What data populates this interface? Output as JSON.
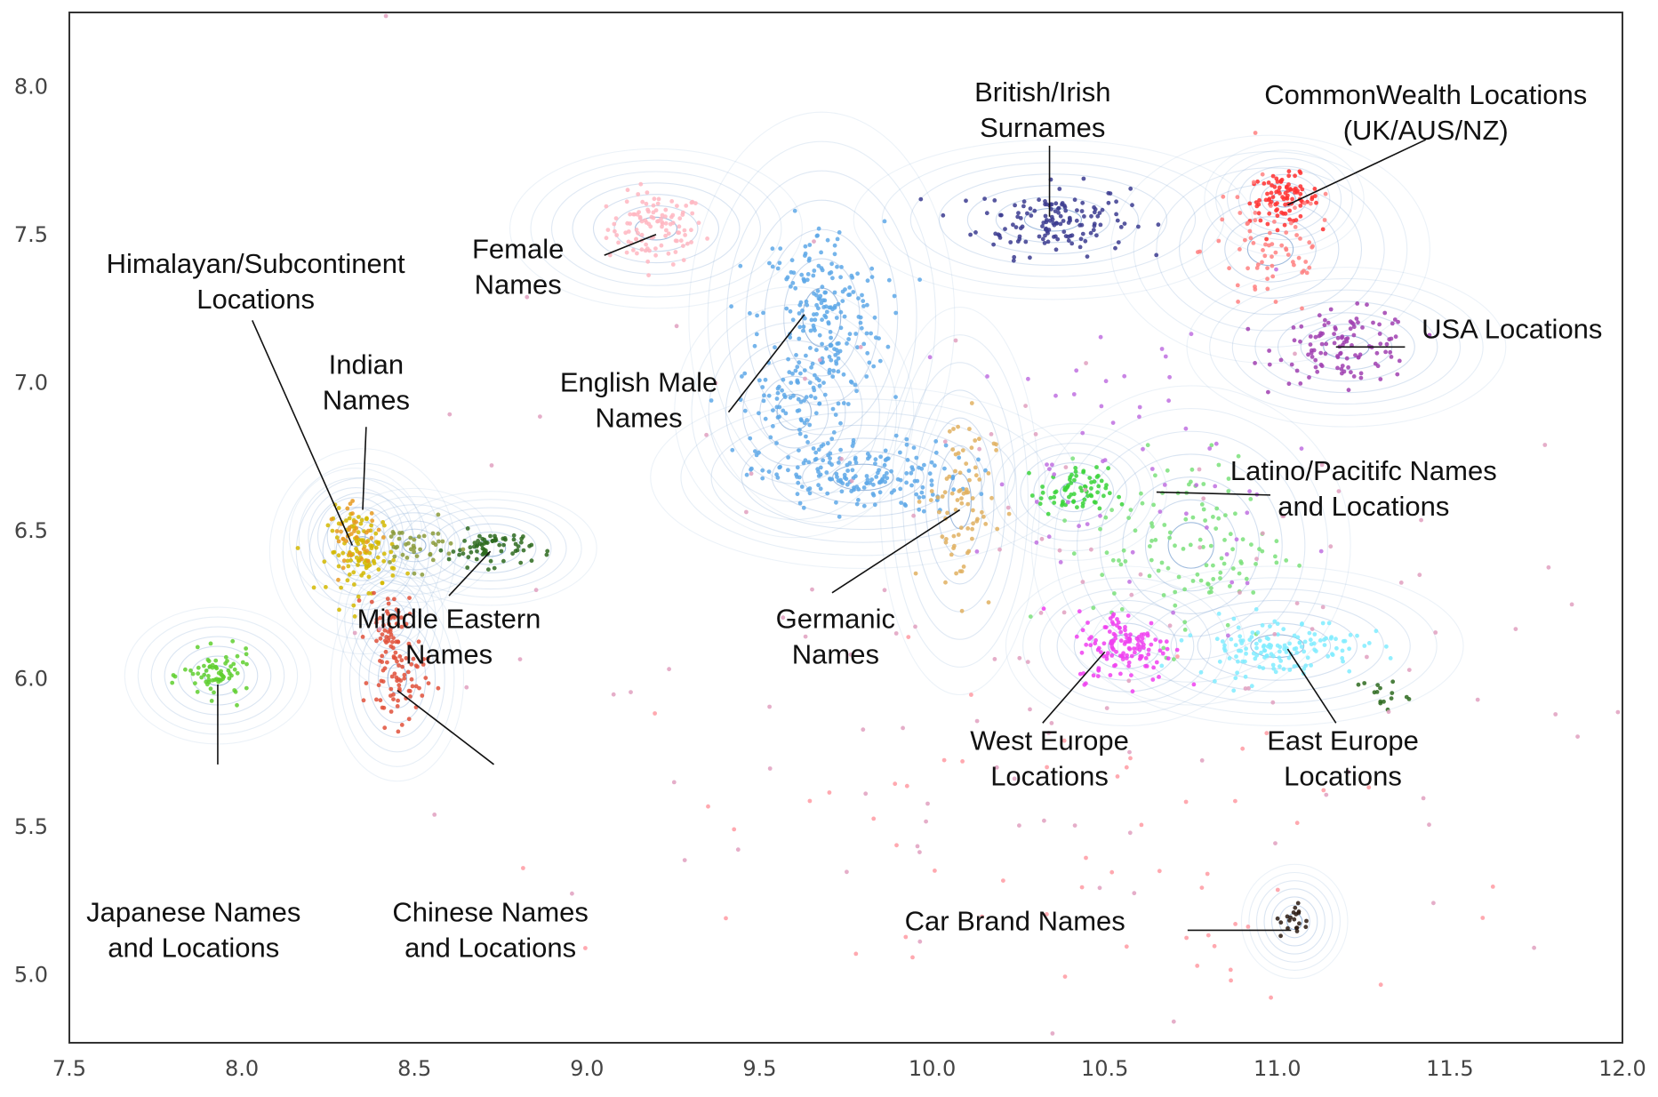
{
  "chart_data": {
    "type": "scatter",
    "title": "",
    "xlabel": "",
    "ylabel": "",
    "xlim": [
      7.5,
      12.0
    ],
    "ylim": [
      4.77,
      8.25
    ],
    "grid": false,
    "legend": "none",
    "x_ticks": [
      "7.5",
      "8.0",
      "8.5",
      "9.0",
      "9.5",
      "10.0",
      "10.5",
      "11.0",
      "11.5",
      "12.0"
    ],
    "y_ticks": [
      "5.0",
      "5.5",
      "6.0",
      "6.5",
      "7.0",
      "7.5",
      "8.0"
    ],
    "series": [
      {
        "cx": 9.2,
        "cy": 7.52,
        "color": "#ffb6c1",
        "spread": [
          0.07,
          0.06
        ],
        "count": 110,
        "contour": [
          0.11,
          0.07
        ]
      },
      {
        "cx": 10.35,
        "cy": 7.55,
        "color": "#3b3b8f",
        "spread": [
          0.11,
          0.06
        ],
        "count": 140,
        "contour": [
          0.15,
          0.07
        ]
      },
      {
        "cx": 11.02,
        "cy": 7.62,
        "color": "#ff3030",
        "spread": [
          0.05,
          0.04
        ],
        "count": 90,
        "contour": [
          0.06,
          0.05
        ]
      },
      {
        "cx": 10.98,
        "cy": 7.45,
        "color": "#ff8080",
        "spread": [
          0.1,
          0.12
        ],
        "count": 70,
        "contour": [
          0.12,
          0.1
        ]
      },
      {
        "cx": 11.2,
        "cy": 7.12,
        "color": "#a040b0",
        "spread": [
          0.1,
          0.06
        ],
        "count": 110,
        "contour": [
          0.12,
          0.07
        ]
      },
      {
        "cx": 9.68,
        "cy": 7.22,
        "color": "#5ea8e8",
        "spread": [
          0.09,
          0.16
        ],
        "count": 220,
        "contour": [
          0.1,
          0.18
        ]
      },
      {
        "cx": 9.8,
        "cy": 6.68,
        "color": "#5ea8e8",
        "spread": [
          0.15,
          0.06
        ],
        "count": 170,
        "contour": [
          0.16,
          0.08
        ]
      },
      {
        "cx": 9.6,
        "cy": 6.9,
        "color": "#5ea8e8",
        "spread": [
          0.08,
          0.1
        ],
        "count": 80,
        "contour": [
          0.09,
          0.11
        ]
      },
      {
        "cx": 8.35,
        "cy": 6.43,
        "color": "#d4b800",
        "spread": [
          0.05,
          0.07
        ],
        "count": 110,
        "contour": [
          0.07,
          0.09
        ]
      },
      {
        "cx": 8.33,
        "cy": 6.48,
        "color": "#e89a20",
        "spread": [
          0.04,
          0.05
        ],
        "count": 40,
        "contour": [
          0.05,
          0.06
        ]
      },
      {
        "cx": 8.72,
        "cy": 6.44,
        "color": "#2d6a1f",
        "spread": [
          0.06,
          0.03
        ],
        "count": 70,
        "contour": [
          0.08,
          0.05
        ]
      },
      {
        "cx": 8.5,
        "cy": 6.45,
        "color": "#8a9a3a",
        "spread": [
          0.06,
          0.04
        ],
        "count": 40,
        "contour": [
          0.06,
          0.05
        ]
      },
      {
        "cx": 7.93,
        "cy": 6.01,
        "color": "#5fcf2f",
        "spread": [
          0.05,
          0.04
        ],
        "count": 70,
        "contour": [
          0.07,
          0.06
        ]
      },
      {
        "cx": 8.45,
        "cy": 6.0,
        "color": "#e0503a",
        "spread": [
          0.04,
          0.08
        ],
        "count": 80,
        "contour": [
          0.05,
          0.09
        ]
      },
      {
        "cx": 8.43,
        "cy": 6.2,
        "color": "#e0503a",
        "spread": [
          0.03,
          0.05
        ],
        "count": 40,
        "contour": [
          0.04,
          0.06
        ]
      },
      {
        "cx": 10.08,
        "cy": 6.6,
        "color": "#e0b060",
        "spread": [
          0.05,
          0.16
        ],
        "count": 80,
        "contour": [
          0.06,
          0.17
        ]
      },
      {
        "cx": 10.41,
        "cy": 6.63,
        "color": "#3ad43a",
        "spread": [
          0.05,
          0.04
        ],
        "count": 70,
        "contour": [
          0.07,
          0.06
        ]
      },
      {
        "cx": 10.75,
        "cy": 6.45,
        "color": "#7ae07a",
        "spread": [
          0.14,
          0.16
        ],
        "count": 120,
        "contour": [
          0.12,
          0.14
        ]
      },
      {
        "cx": 10.56,
        "cy": 6.11,
        "color": "#f040f0",
        "spread": [
          0.07,
          0.06
        ],
        "count": 130,
        "contour": [
          0.09,
          0.07
        ]
      },
      {
        "cx": 11.0,
        "cy": 6.11,
        "color": "#80ecff",
        "spread": [
          0.12,
          0.05
        ],
        "count": 140,
        "contour": [
          0.14,
          0.07
        ]
      },
      {
        "cx": 10.6,
        "cy": 6.7,
        "color": "#c070e0",
        "spread": [
          0.25,
          0.25
        ],
        "count": 60,
        "contour": [
          0.0,
          0.0
        ]
      },
      {
        "cx": 11.05,
        "cy": 5.18,
        "color": "#2a1a10",
        "spread": [
          0.02,
          0.03
        ],
        "count": 20,
        "contour": [
          0.04,
          0.05
        ]
      },
      {
        "cx": 11.3,
        "cy": 5.95,
        "color": "#2d6a1f",
        "spread": [
          0.04,
          0.03
        ],
        "count": 15,
        "contour": [
          0.0,
          0.0
        ]
      },
      {
        "cx": 10.2,
        "cy": 6.1,
        "color": "#e0a0c0",
        "spread": [
          0.9,
          0.6
        ],
        "count": 140,
        "contour": [
          0.0,
          0.0
        ]
      },
      {
        "cx": 10.4,
        "cy": 5.4,
        "color": "#ff9aa2",
        "spread": [
          0.7,
          0.35
        ],
        "count": 60,
        "contour": [
          0.0,
          0.0
        ]
      }
    ],
    "annotations": [
      {
        "lines": [
          "Female",
          "Names"
        ],
        "tx": 8.8,
        "ty": 7.42,
        "ax": 9.2,
        "ay": 7.5,
        "lx": 9.05,
        "ly": 7.43
      },
      {
        "lines": [
          "British/Irish",
          "Surnames"
        ],
        "tx": 10.32,
        "ty": 7.95,
        "ax": 10.34,
        "ay": 7.56,
        "lx": 10.34,
        "ly": 7.8
      },
      {
        "lines": [
          "CommonWealth Locations",
          "(UK/AUS/NZ)"
        ],
        "tx": 11.43,
        "ty": 7.94,
        "ax": 11.03,
        "ay": 7.6,
        "lx": 11.43,
        "ly": 7.82
      },
      {
        "lines": [
          "USA Locations"
        ],
        "tx": 11.68,
        "ty": 7.15,
        "ax": 11.17,
        "ay": 7.12,
        "lx": 11.37,
        "ly": 7.12
      },
      {
        "lines": [
          "Himalayan/Subcontinent",
          "Locations"
        ],
        "tx": 8.04,
        "ty": 7.37,
        "ax": 8.32,
        "ay": 6.45,
        "lx": 8.03,
        "ly": 7.21
      },
      {
        "lines": [
          "Indian",
          "Names"
        ],
        "tx": 8.36,
        "ty": 7.03,
        "ax": 8.35,
        "ay": 6.57,
        "lx": 8.36,
        "ly": 6.85
      },
      {
        "lines": [
          "English Male",
          "Names"
        ],
        "tx": 9.15,
        "ty": 6.97,
        "ax": 9.63,
        "ay": 7.23,
        "lx": 9.41,
        "ly": 6.9
      },
      {
        "lines": [
          "Latino/Pacitifc Names",
          "and Locations"
        ],
        "tx": 11.25,
        "ty": 6.67,
        "ax": 10.65,
        "ay": 6.63,
        "lx": 10.98,
        "ly": 6.62
      },
      {
        "lines": [
          "Middle Eastern",
          "Names"
        ],
        "tx": 8.6,
        "ty": 6.17,
        "ax": 8.72,
        "ay": 6.43,
        "lx": 8.6,
        "ly": 6.28
      },
      {
        "lines": [
          "Germanic",
          "Names"
        ],
        "tx": 9.72,
        "ty": 6.17,
        "ax": 10.08,
        "ay": 6.57,
        "lx": 9.71,
        "ly": 6.29
      },
      {
        "lines": [
          "West Europe",
          "Locations"
        ],
        "tx": 10.34,
        "ty": 5.76,
        "ax": 10.5,
        "ay": 6.09,
        "lx": 10.32,
        "ly": 5.85
      },
      {
        "lines": [
          "East Europe",
          "Locations"
        ],
        "tx": 11.19,
        "ty": 5.76,
        "ax": 11.03,
        "ay": 6.1,
        "lx": 11.17,
        "ly": 5.85
      },
      {
        "lines": [
          "Japanese Names",
          "and Locations"
        ],
        "tx": 7.86,
        "ty": 5.18,
        "ax": 7.93,
        "ay": 5.98,
        "lx": 7.93,
        "ly": 5.71
      },
      {
        "lines": [
          "Chinese Names",
          "and Locations"
        ],
        "tx": 8.72,
        "ty": 5.18,
        "ax": 8.45,
        "ay": 5.96,
        "lx": 8.73,
        "ly": 5.71
      },
      {
        "lines": [
          "Car Brand Names"
        ],
        "tx": 10.24,
        "ty": 5.15,
        "ax": 11.04,
        "ay": 5.15,
        "lx": 10.74,
        "ly": 5.15
      }
    ]
  }
}
